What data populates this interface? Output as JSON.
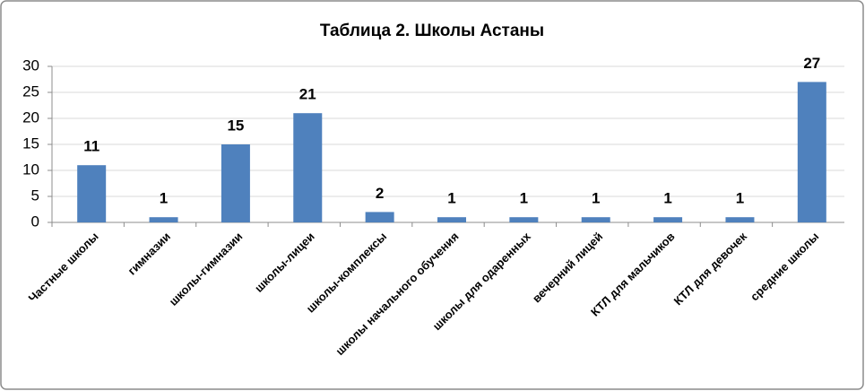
{
  "chart_data": {
    "type": "bar",
    "title": "Таблица 2. Школы Астаны",
    "categories": [
      "Частные школы",
      "гимназии",
      "школы-гимназии",
      "школы-лицеи",
      "школы-комплексы",
      "школы начального обучения",
      "школы для одаренных",
      "вечерний лицей",
      "КТЛ для мальчиков",
      "КТЛ для девочек",
      "средние школы"
    ],
    "values": [
      11,
      1,
      15,
      21,
      2,
      1,
      1,
      1,
      1,
      1,
      27
    ],
    "color": "#4f81bd",
    "ylim": [
      0,
      30
    ],
    "yticks": [
      0,
      5,
      10,
      15,
      20,
      25,
      30
    ],
    "grid": true
  }
}
